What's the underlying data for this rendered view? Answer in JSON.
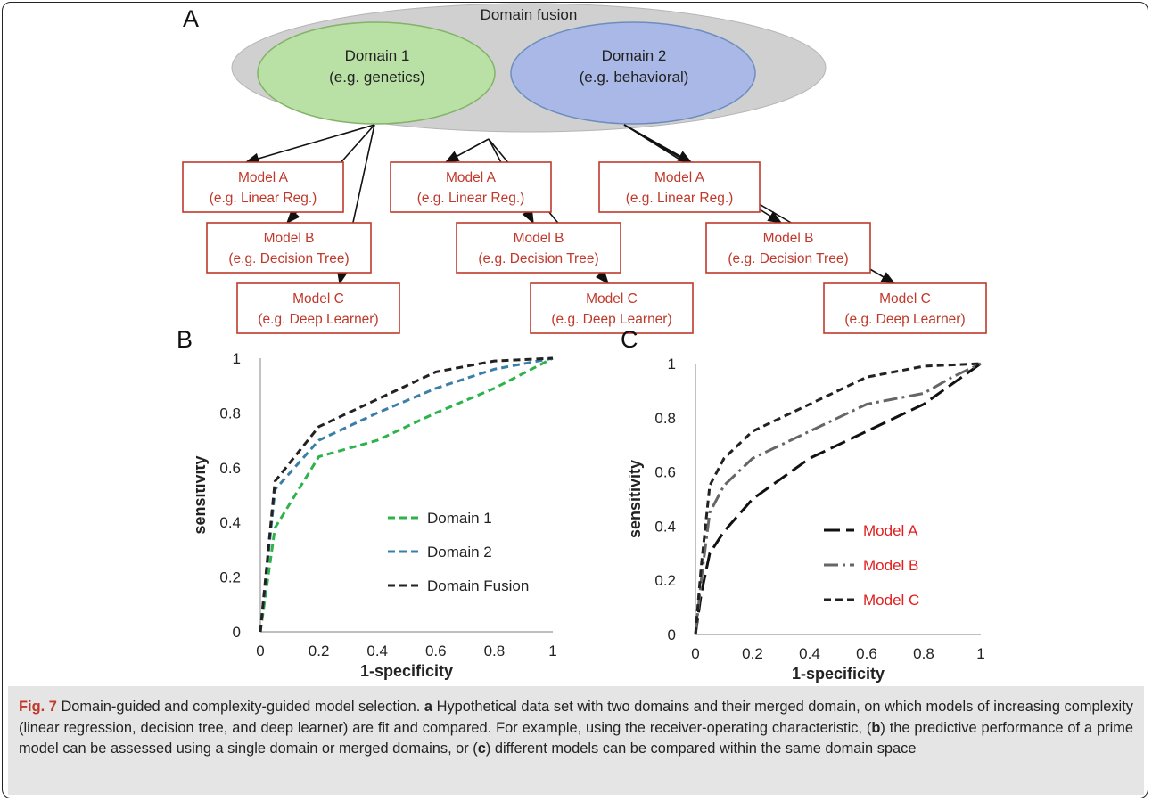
{
  "panel_a": {
    "letter": "A",
    "fusion_label": "Domain fusion",
    "domain1": {
      "line1": "Domain 1",
      "line2": "(e.g. genetics)"
    },
    "domain2": {
      "line1": "Domain 2",
      "line2": "(e.g. behavioral)"
    },
    "model_groups": [
      {
        "models": [
          {
            "line1": "Model A",
            "line2": "(e.g. Linear Reg.)"
          },
          {
            "line1": "Model B",
            "line2": "(e.g. Decision Tree)"
          },
          {
            "line1": "Model C",
            "line2": "(e.g. Deep Learner)"
          }
        ]
      },
      {
        "models": [
          {
            "line1": "Model A",
            "line2": "(e.g. Linear Reg.)"
          },
          {
            "line1": "Model B",
            "line2": "(e.g. Decision Tree)"
          },
          {
            "line1": "Model C",
            "line2": "(e.g. Deep Learner)"
          }
        ]
      },
      {
        "models": [
          {
            "line1": "Model A",
            "line2": "(e.g. Linear Reg.)"
          },
          {
            "line1": "Model B",
            "line2": "(e.g. Decision Tree)"
          },
          {
            "line1": "Model C",
            "line2": "(e.g. Deep Learner)"
          }
        ]
      }
    ],
    "colors": {
      "domain1_fill": "#b9e0a5",
      "domain1_stroke": "#82b366",
      "domain2_fill": "#a9b8e6",
      "domain2_stroke": "#6c8ebf",
      "fusion_fill": "#d0d0d0",
      "model_stroke": "#c0392b",
      "model_text": "#c0392b"
    }
  },
  "chart_data": [
    {
      "panel": "B",
      "type": "line",
      "xlabel": "1-specificity",
      "ylabel": "sensitivity",
      "xlim": [
        0,
        1
      ],
      "ylim": [
        0,
        1
      ],
      "xticks": [
        "0",
        "0.2",
        "0.4",
        "0.6",
        "0.8",
        "1"
      ],
      "yticks": [
        "0",
        "0.2",
        "0.4",
        "0.6",
        "0.8",
        "1"
      ],
      "grid": false,
      "legend": "center-right",
      "series": [
        {
          "name": "Domain 1",
          "color": "#2db34a",
          "dash": "dashed",
          "label_color": "#222222",
          "x": [
            0,
            0.05,
            0.2,
            0.4,
            0.6,
            0.8,
            1
          ],
          "y": [
            0,
            0.38,
            0.64,
            0.7,
            0.8,
            0.89,
            1
          ]
        },
        {
          "name": "Domain 2",
          "color": "#3a7fa8",
          "dash": "dashed",
          "label_color": "#222222",
          "x": [
            0,
            0.05,
            0.2,
            0.4,
            0.6,
            0.8,
            1
          ],
          "y": [
            0,
            0.52,
            0.7,
            0.8,
            0.89,
            0.96,
            1
          ]
        },
        {
          "name": "Domain Fusion",
          "color": "#222222",
          "dash": "dashed",
          "label_color": "#222222",
          "x": [
            0,
            0.05,
            0.2,
            0.4,
            0.6,
            0.8,
            1
          ],
          "y": [
            0,
            0.55,
            0.75,
            0.85,
            0.95,
            0.99,
            1
          ]
        }
      ]
    },
    {
      "panel": "C",
      "type": "line",
      "xlabel": "1-specificity",
      "ylabel": "sensitivity",
      "xlim": [
        0,
        1
      ],
      "ylim": [
        0,
        1
      ],
      "xticks": [
        "0",
        "0.2",
        "0.4",
        "0.6",
        "0.8",
        "1"
      ],
      "yticks": [
        "0",
        "0.2",
        "0.4",
        "0.6",
        "0.8",
        "1"
      ],
      "grid": false,
      "legend": "center-right",
      "series": [
        {
          "name": "Model A",
          "color": "#111111",
          "dash": "longdash",
          "label_color": "#e02020",
          "x": [
            0,
            0.02,
            0.05,
            0.1,
            0.2,
            0.4,
            0.6,
            0.8,
            1
          ],
          "y": [
            0,
            0.15,
            0.3,
            0.38,
            0.5,
            0.65,
            0.75,
            0.85,
            1
          ]
        },
        {
          "name": "Model B",
          "color": "#666666",
          "dash": "dashdot",
          "label_color": "#e02020",
          "x": [
            0,
            0.02,
            0.05,
            0.1,
            0.2,
            0.4,
            0.6,
            0.8,
            0.9,
            1
          ],
          "y": [
            0,
            0.2,
            0.45,
            0.55,
            0.65,
            0.75,
            0.85,
            0.89,
            0.95,
            1
          ]
        },
        {
          "name": "Model C",
          "color": "#222222",
          "dash": "dashed",
          "label_color": "#e02020",
          "x": [
            0,
            0.02,
            0.05,
            0.1,
            0.2,
            0.4,
            0.6,
            0.8,
            1
          ],
          "y": [
            0,
            0.25,
            0.55,
            0.65,
            0.75,
            0.85,
            0.95,
            0.99,
            1
          ]
        }
      ]
    }
  ],
  "caption": {
    "fig_label": "Fig. 7",
    "title": "Domain-guided and complexity-guided model selection.",
    "a_letter": "a",
    "a_text": "Hypothetical data set with two domains and their merged domain, on which models of increasing complexity (linear regression, decision tree, and deep learner) are fit and compared. For example, using the receiver-operating characteristic, (",
    "b_letter": "b",
    "b_text": ") the predictive performance of a prime model can be assessed using a single domain or merged domains, or (",
    "c_letter": "c",
    "c_text": ") different models can be compared within the same domain space"
  }
}
